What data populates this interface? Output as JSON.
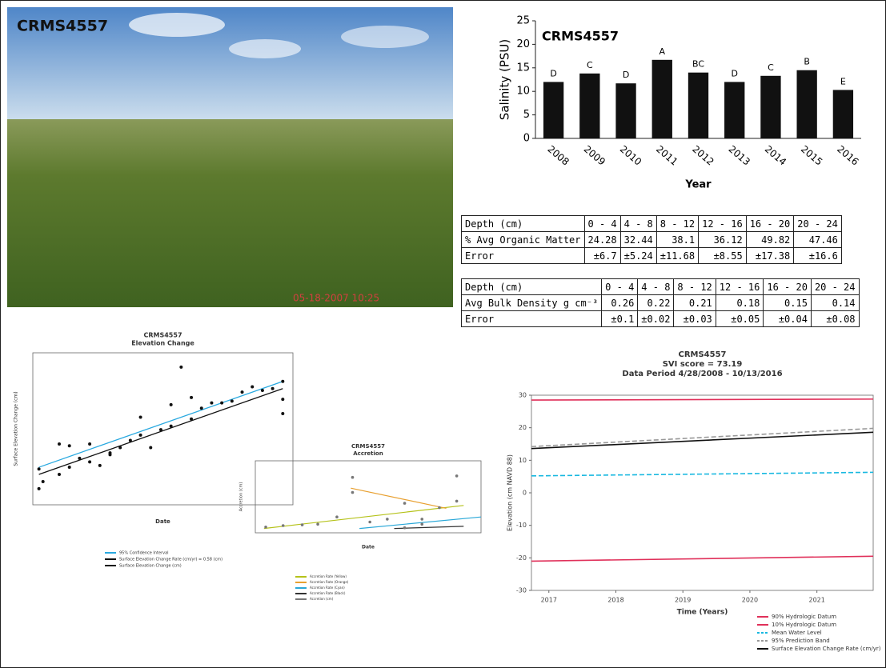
{
  "photo": {
    "label": "CRMS4557",
    "timestamp": "05-18-2007 10:25"
  },
  "chart_data": [
    {
      "type": "bar",
      "title": "CRMS4557",
      "y_label": "Salinity (PSU)",
      "x_label": "Year",
      "categories": [
        "2008",
        "2009",
        "2010",
        "2011",
        "2012",
        "2013",
        "2014",
        "2015",
        "2016"
      ],
      "values": [
        12,
        13.8,
        11.7,
        16.7,
        14,
        12,
        13.3,
        14.5,
        10.3
      ],
      "letters": [
        "D",
        "C",
        "D",
        "A",
        "BC",
        "D",
        "C",
        "B",
        "E"
      ],
      "color": "#111111",
      "ylim": [
        0,
        25
      ],
      "yticks": [
        0,
        5,
        10,
        15,
        20,
        25
      ]
    },
    {
      "type": "scatter",
      "title": "CRMS4557",
      "subtitle": "Elevation Change",
      "x_label": "Date",
      "y_label": "Surface Elevation Change (cm)",
      "xlim": [
        -0.3,
        12.5
      ],
      "ylim": [
        -0.5,
        8
      ],
      "series": [
        {
          "name": "95% Confidence Interval",
          "color": "#29a9e0",
          "style": "line",
          "x": [
            0,
            12
          ],
          "y": [
            1.6,
            6.4
          ]
        },
        {
          "name": "Surface Elevation Change Rate (cm/yr) = 0.58 (cm)",
          "color": "#111111",
          "style": "line",
          "x": [
            0,
            12
          ],
          "y": [
            1.2,
            6.0
          ]
        },
        {
          "name": "Surface Elevation Change (cm)",
          "color": "#111111",
          "style": "points",
          "x": [
            0,
            0,
            0.2,
            1,
            1,
            1.5,
            1.5,
            2,
            2.5,
            2.5,
            3,
            3.5,
            3.5,
            4,
            4.5,
            5,
            5,
            5.5,
            6,
            6.5,
            6.5,
            7,
            7.5,
            7.5,
            8,
            8.5,
            9,
            9.5,
            10,
            10.5,
            11,
            11.5,
            12,
            12,
            12
          ],
          "y": [
            0.4,
            1.5,
            0.8,
            1.2,
            2.9,
            1.6,
            2.8,
            2.1,
            2.9,
            1.9,
            1.7,
            2.3,
            2.4,
            2.7,
            3.1,
            3.4,
            4.4,
            2.7,
            3.7,
            3.9,
            5.1,
            7.2,
            4.3,
            5.5,
            4.9,
            5.2,
            5.2,
            5.3,
            5.8,
            6.1,
            5.9,
            6.0,
            4.6,
            5.4,
            6.4
          ]
        }
      ]
    },
    {
      "type": "scatter",
      "title": "CRMS4557",
      "subtitle": "Accretion",
      "x_label": "Date",
      "y_label": "Accretion (cm)",
      "xlim": [
        0,
        13
      ],
      "ylim": [
        0,
        10
      ],
      "series": [
        {
          "name": "Accretion Rate (Yellow)",
          "color": "#b5c21a",
          "style": "line",
          "x": [
            0.5,
            12
          ],
          "y": [
            0.6,
            3.8
          ]
        },
        {
          "name": "Accretion Rate (Orange)",
          "color": "#e8a030",
          "style": "line",
          "x": [
            5.5,
            11
          ],
          "y": [
            6.2,
            3.4
          ]
        },
        {
          "name": "Accretion Rate (Cyan)",
          "color": "#2aa8d8",
          "style": "line",
          "x": [
            6,
            13
          ],
          "y": [
            0.6,
            2.2
          ]
        },
        {
          "name": "Accretion Rate (Black)",
          "color": "#333333",
          "style": "line",
          "x": [
            8,
            12
          ],
          "y": [
            0.6,
            0.9
          ]
        },
        {
          "name": "Accretion (cm)",
          "color": "#777777",
          "style": "points",
          "x": [
            0.6,
            1.6,
            2.7,
            3.6,
            4.7,
            5.6,
            5.6,
            6.6,
            7.6,
            8.6,
            9.6,
            10.6,
            11.6,
            11.6,
            8.6,
            9.6
          ],
          "y": [
            0.8,
            1.0,
            1.1,
            1.2,
            2.2,
            7.7,
            5.6,
            1.5,
            1.9,
            4.1,
            1.9,
            3.5,
            4.4,
            7.9,
            0.7,
            1.2
          ]
        }
      ]
    },
    {
      "type": "line",
      "title": "CRMS4557",
      "subtitle": "SVI score = 73.19",
      "subtitle2": "Data Period 4/28/2008 - 10/13/2016",
      "x_label": "Time (Years)",
      "y_label": "Elevation (cm NAVD 88)",
      "xlim": [
        2016.74,
        2021.84
      ],
      "xticks": [
        2017,
        2018,
        2019,
        2020,
        2021
      ],
      "ylim": [
        -30,
        30
      ],
      "yticks": [
        30,
        20,
        10,
        0,
        -10,
        -20,
        -30
      ],
      "grid": false,
      "series": [
        {
          "name": "90% Hydrologic Datum",
          "color": "#e0305a",
          "style": "line",
          "x": [
            2016.74,
            2021.84
          ],
          "y": [
            28.5,
            28.8
          ]
        },
        {
          "name": "10% Hydrologic Datum",
          "color": "#e0305a",
          "style": "line",
          "x": [
            2016.74,
            2021.84
          ],
          "y": [
            -21,
            -19.5
          ]
        },
        {
          "name": "Mean Water Level",
          "color": "#18b8e0",
          "style": "dash",
          "x": [
            2016.74,
            2021.84
          ],
          "y": [
            5.2,
            6.3
          ]
        },
        {
          "name": "95% Prediction Band",
          "color": "#999999",
          "style": "dash",
          "x": [
            2016.74,
            2021.84
          ],
          "y": [
            14.2,
            19.8
          ]
        },
        {
          "name": "Surface Elevation Change Rate (cm/yr)",
          "color": "#111111",
          "style": "line",
          "x": [
            2016.74,
            2021.84
          ],
          "y": [
            13.6,
            18.6
          ]
        }
      ]
    }
  ],
  "tables": [
    {
      "header": [
        "Depth (cm)",
        "0 - 4",
        "4 - 8",
        "8 - 12",
        "12 - 16",
        "16 - 20",
        "20 - 24"
      ],
      "rows": [
        [
          "% Avg Organic Matter",
          "24.28",
          "32.44",
          "38.1",
          "36.12",
          "49.82",
          "47.46"
        ],
        [
          "Error",
          "±6.7",
          "±5.24",
          "±11.68",
          "±8.55",
          "±17.38",
          "±16.6"
        ]
      ]
    },
    {
      "header": [
        "Depth (cm)",
        "0 - 4",
        "4 - 8",
        "8 - 12",
        "12 - 16",
        "16 - 20",
        "20 - 24"
      ],
      "rows": [
        [
          "Avg Bulk Density g cm⁻³",
          "0.26",
          "0.22",
          "0.21",
          "0.18",
          "0.15",
          "0.14"
        ],
        [
          "Error",
          "±0.1",
          "±0.02",
          "±0.03",
          "±0.05",
          "±0.04",
          "±0.08"
        ]
      ]
    }
  ]
}
